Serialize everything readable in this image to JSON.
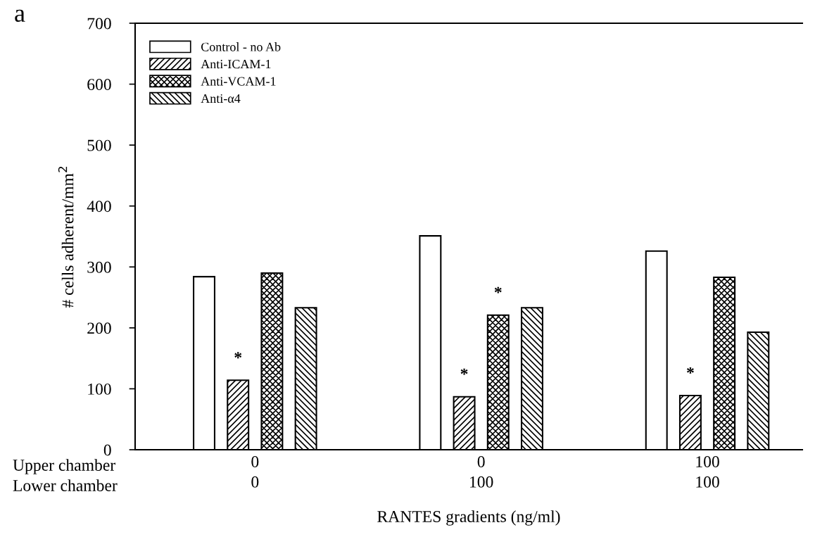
{
  "chart_data": {
    "type": "bar",
    "categories": [
      "0\n0",
      "0\n100",
      "100\n100"
    ],
    "series": [
      {
        "name": "Control - no Ab",
        "color": "#ffffff",
        "values": [
          284,
          351,
          326
        ]
      },
      {
        "name": "Anti-ICAM-1",
        "color": "#000000",
        "values": [
          114,
          87,
          89
        ],
        "value_labels": [
          "*",
          "*",
          "*"
        ]
      },
      {
        "name": "Anti-VCAM-1",
        "color": "#000000",
        "values": [
          290,
          221,
          283
        ],
        "value_labels": [
          null,
          "*",
          null
        ]
      },
      {
        "name": "Anti-α4",
        "color": "#000000",
        "values": [
          233,
          233,
          193
        ]
      }
    ],
    "ylabel": "# cells adherent/mm$^{2}$",
    "xlabel": "RANTES gradients (ng/ml)",
    "annotations": [
      "a",
      "Upper chamber",
      "Lower chamber"
    ],
    "ylim": [
      0,
      700
    ],
    "yticks": [
      0,
      100,
      200,
      300,
      400,
      500,
      600,
      700
    ],
    "legend": "top left",
    "grid": false
  }
}
